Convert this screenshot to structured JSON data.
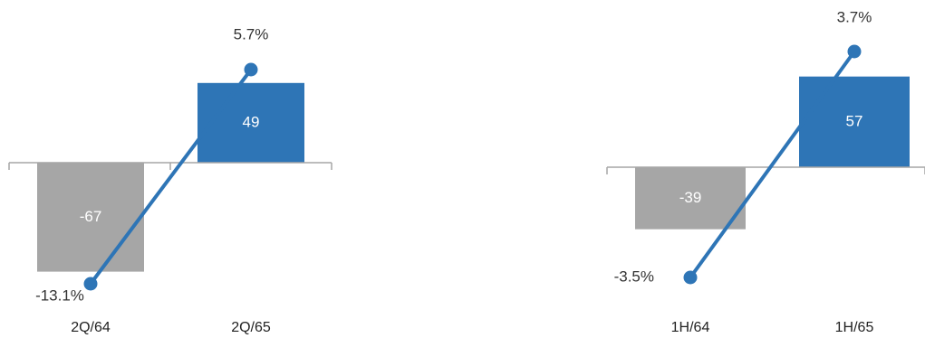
{
  "colors": {
    "negative": "#a6a6a6",
    "positive": "#2e75b6",
    "line": "#2e75b6",
    "axis": "#a6a6a6"
  },
  "chart_data": [
    {
      "type": "bar",
      "categories": [
        "2Q/64",
        "2Q/65"
      ],
      "series": [
        {
          "values": [
            -67,
            49
          ],
          "value_labels": [
            "-67",
            "49"
          ]
        },
        {
          "type": "line",
          "values": [
            -13.1,
            5.7
          ],
          "value_labels": [
            "-13.1%",
            "5.7%"
          ]
        }
      ]
    },
    {
      "type": "bar",
      "categories": [
        "1H/64",
        "1H/65"
      ],
      "series": [
        {
          "values": [
            -39,
            57
          ],
          "value_labels": [
            "-39",
            "57"
          ]
        },
        {
          "type": "line",
          "values": [
            -3.5,
            3.7
          ],
          "value_labels": [
            "-3.5%",
            "3.7%"
          ]
        }
      ]
    }
  ]
}
